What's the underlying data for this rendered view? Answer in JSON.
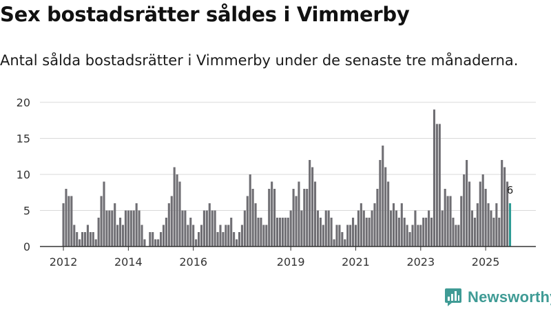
{
  "title": "Sex bostadsrätter såldes i Vimmerby",
  "subtitle": "Antal sålda bostadsrätter i Vimmerby under de senaste tre månaderna.",
  "brand": {
    "name": "Newsworthy",
    "icon": "newsworthy-logo-icon"
  },
  "colors": {
    "bar": "#6f6e73",
    "highlight": "#2b9a93",
    "grid": "#d9d9d9",
    "axis": "#333333",
    "brand": "#3f9b95"
  },
  "chart_data": {
    "type": "bar",
    "title": "Sex bostadsrätter såldes i Vimmerby",
    "xlabel": "",
    "ylabel": "",
    "ylim": [
      0,
      20
    ],
    "yticks": [
      0,
      5,
      10,
      15,
      20
    ],
    "grid": true,
    "start_period": "2012-01",
    "x_ticks": [
      {
        "label": "2012",
        "index": 0
      },
      {
        "label": "2014",
        "index": 24
      },
      {
        "label": "2016",
        "index": 48
      },
      {
        "label": "2019",
        "index": 84
      },
      {
        "label": "2021",
        "index": 108
      },
      {
        "label": "2023",
        "index": 132
      },
      {
        "label": "2025",
        "index": 156
      }
    ],
    "values": [
      6,
      8,
      7,
      7,
      3,
      2,
      1,
      2,
      2,
      3,
      2,
      2,
      1,
      4,
      7,
      9,
      5,
      5,
      5,
      6,
      3,
      4,
      3,
      5,
      5,
      5,
      5,
      6,
      5,
      3,
      1,
      0,
      2,
      2,
      1,
      1,
      2,
      3,
      4,
      6,
      7,
      11,
      10,
      9,
      5,
      5,
      3,
      4,
      3,
      1,
      2,
      3,
      5,
      5,
      6,
      5,
      5,
      2,
      3,
      2,
      3,
      3,
      4,
      2,
      1,
      2,
      3,
      5,
      7,
      10,
      8,
      6,
      4,
      4,
      3,
      3,
      8,
      9,
      8,
      4,
      4,
      4,
      4,
      4,
      5,
      8,
      7,
      9,
      5,
      8,
      8,
      12,
      11,
      9,
      5,
      4,
      3,
      5,
      5,
      4,
      1,
      3,
      3,
      2,
      1,
      3,
      3,
      4,
      3,
      5,
      6,
      5,
      4,
      4,
      5,
      6,
      8,
      12,
      14,
      11,
      9,
      5,
      6,
      5,
      4,
      6,
      4,
      3,
      2,
      3,
      5,
      3,
      3,
      4,
      4,
      5,
      4,
      19,
      17,
      17,
      5,
      8,
      7,
      7,
      4,
      3,
      3,
      7,
      10,
      12,
      9,
      5,
      4,
      6,
      9,
      10,
      8,
      6,
      5,
      4,
      6,
      4,
      12,
      11,
      9,
      6
    ],
    "highlight_index": 165,
    "highlight_label": "6"
  }
}
